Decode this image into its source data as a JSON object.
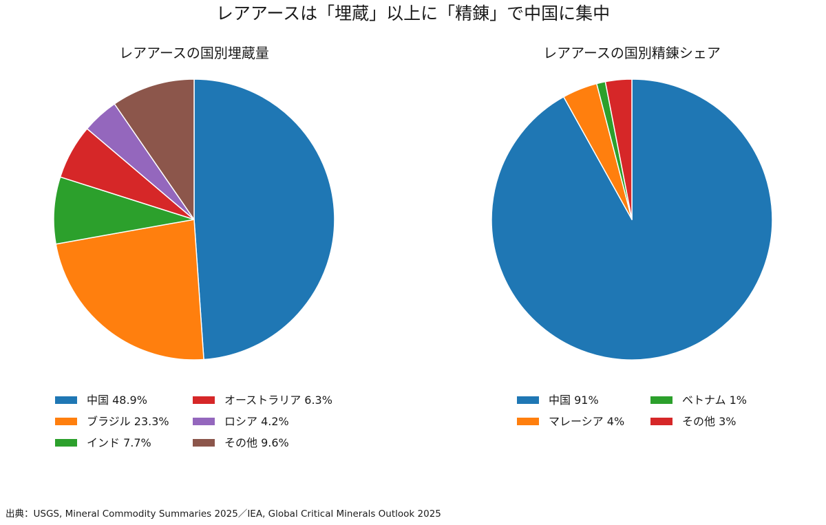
{
  "title": "レアアースは「埋蔵」以上に「精錬」で中国に集中",
  "source": "出典：USGS, Mineral Commodity Summaries 2025／IEA, Global Critical Minerals Outlook 2025",
  "chart_data": [
    {
      "type": "pie",
      "title": "レアアースの国別埋蔵量",
      "start_angle_deg": 90,
      "direction": "clockwise",
      "legend_position": "below",
      "slices": [
        {
          "label": "中国 48.9%",
          "value": 48.9,
          "color": "#1f77b4"
        },
        {
          "label": "ブラジル 23.3%",
          "value": 23.3,
          "color": "#ff7f0e"
        },
        {
          "label": "インド 7.7%",
          "value": 7.7,
          "color": "#2ca02c"
        },
        {
          "label": "オーストラリア 6.3%",
          "value": 6.3,
          "color": "#d62728"
        },
        {
          "label": "ロシア 4.2%",
          "value": 4.2,
          "color": "#9467bd"
        },
        {
          "label": "その他 9.6%",
          "value": 9.6,
          "color": "#8c564b"
        }
      ]
    },
    {
      "type": "pie",
      "title": "レアアースの国別精錬シェア",
      "start_angle_deg": 90,
      "direction": "clockwise",
      "legend_position": "below",
      "slices": [
        {
          "label": "中国 91%",
          "value": 91,
          "color": "#1f77b4"
        },
        {
          "label": "マレーシア 4%",
          "value": 4,
          "color": "#ff7f0e"
        },
        {
          "label": "ベトナム 1%",
          "value": 1,
          "color": "#2ca02c"
        },
        {
          "label": "その他 3%",
          "value": 3,
          "color": "#d62728"
        }
      ]
    }
  ]
}
